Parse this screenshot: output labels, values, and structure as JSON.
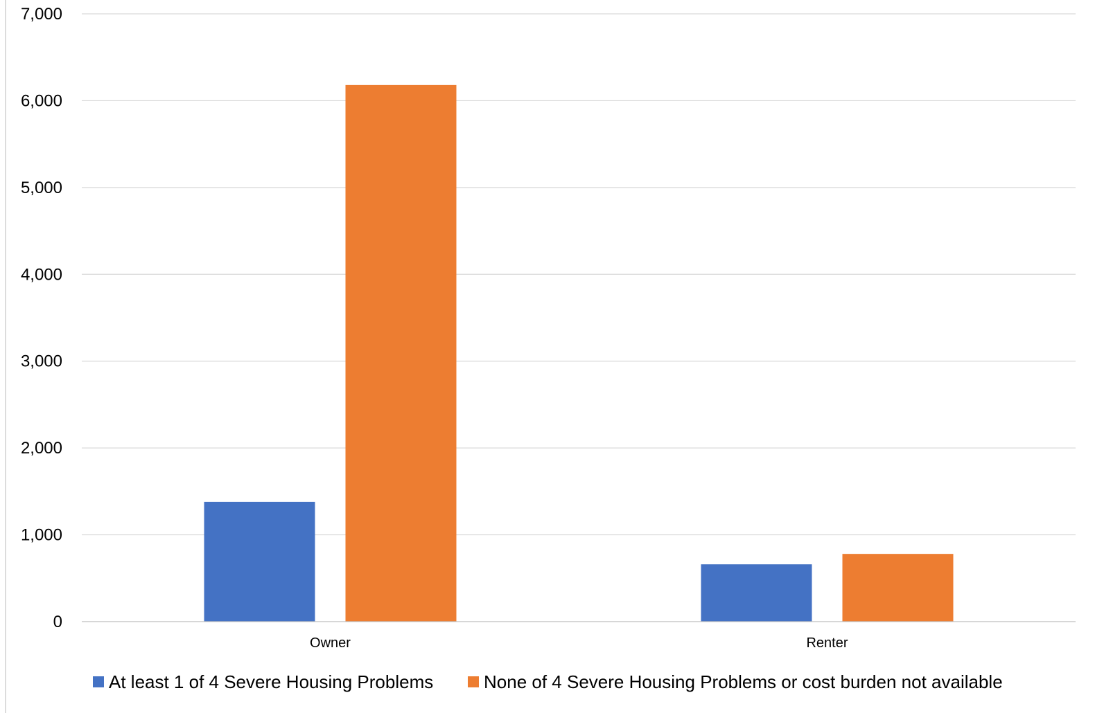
{
  "chart_data": {
    "type": "bar",
    "title": "",
    "xlabel": "",
    "ylabel": "",
    "categories": [
      "Owner",
      "Renter"
    ],
    "series": [
      {
        "name": "At least 1 of 4 Severe Housing Problems",
        "color": "#4472c4",
        "values": [
          1380,
          660
        ]
      },
      {
        "name": "None of 4 Severe Housing Problems or cost burden not available",
        "color": "#ed7d31",
        "values": [
          6180,
          780
        ]
      }
    ],
    "ylim": [
      0,
      7000
    ],
    "yticks": [
      0,
      1000,
      2000,
      3000,
      4000,
      5000,
      6000,
      7000
    ],
    "ytick_labels": [
      "0",
      "1,000",
      "2,000",
      "3,000",
      "4,000",
      "5,000",
      "6,000",
      "7,000"
    ],
    "grid": true,
    "legend_position": "bottom"
  }
}
